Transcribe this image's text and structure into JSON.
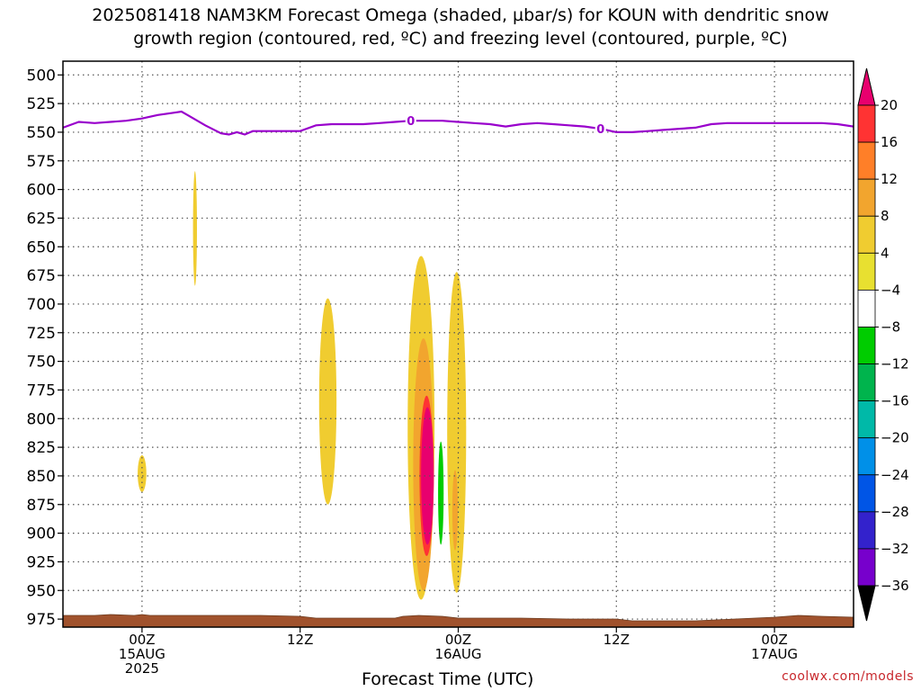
{
  "title": {
    "line1": "2025081418 NAM3KM Forecast Omega (shaded, µbar/s) for KOUN with dendritic snow",
    "line2": "growth region (contoured, red, ºC) and freezing level (contoured, purple, ºC)"
  },
  "credit": "coolwx.com/models",
  "colors": {
    "freezing_level": "#9900cc",
    "terrain": "#a0522d",
    "grid": "#555555"
  },
  "chart_data": {
    "type": "heatmap",
    "xlabel": "Forecast Time (UTC)",
    "ylabel": "",
    "y_axis": {
      "reversed": true,
      "range": [
        488,
        982
      ],
      "ticks": [
        "500",
        "525",
        "550",
        "575",
        "600",
        "625",
        "650",
        "675",
        "700",
        "725",
        "750",
        "775",
        "800",
        "825",
        "850",
        "875",
        "900",
        "925",
        "950",
        "975"
      ]
    },
    "x_axis": {
      "range_hours": [
        -10,
        90
      ],
      "ticks": [
        {
          "hour": 0,
          "lines": [
            "00Z",
            "15AUG",
            "2025"
          ]
        },
        {
          "hour": 20,
          "lines": [
            "12Z"
          ]
        },
        {
          "hour": 40,
          "lines": [
            "00Z",
            "16AUG"
          ]
        },
        {
          "hour": 60,
          "lines": [
            "12Z"
          ]
        },
        {
          "hour": 80,
          "lines": [
            "00Z",
            "17AUG"
          ]
        }
      ],
      "grid": true
    },
    "colorbar": {
      "labels": [
        "20",
        "16",
        "12",
        "8",
        "4",
        "-4",
        "-8",
        "-12",
        "-16",
        "-20",
        "-24",
        "-28",
        "-32",
        "-36"
      ],
      "colors": [
        "#e8005a",
        "#ff3333",
        "#ff7f28",
        "#f2a52e",
        "#f0cc30",
        "#e8e030",
        "#ffffff",
        "#00cc00",
        "#00b44d",
        "#00b9a8",
        "#0090e8",
        "#0055e6",
        "#3322cc",
        "#7700cc",
        "#9900cc",
        "#a3a3a3"
      ],
      "over_color": "#e8006e",
      "under_color": "#000000"
    },
    "freezing_level": {
      "label": "0",
      "color": "#9900cc",
      "x_hours": [
        -10,
        -8,
        -6,
        -4,
        -2,
        0,
        2,
        4,
        5,
        6,
        8,
        10,
        11,
        12,
        13,
        14,
        16,
        18,
        20,
        22,
        24,
        26,
        28,
        30,
        32,
        34,
        36,
        38,
        40,
        42,
        44,
        46,
        48,
        50,
        52,
        54,
        56,
        58,
        60,
        62,
        64,
        66,
        68,
        70,
        72,
        74,
        76,
        78,
        80,
        82,
        84,
        86,
        88,
        90
      ],
      "pressure": [
        546,
        541,
        542,
        541,
        540,
        538,
        535,
        533,
        532,
        536,
        544,
        551,
        552,
        550,
        552,
        549,
        549,
        549,
        549,
        544,
        543,
        543,
        543,
        542,
        541,
        540,
        540,
        540,
        541,
        542,
        543,
        545,
        543,
        542,
        543,
        544,
        545,
        547,
        550,
        550,
        549,
        548,
        547,
        546,
        543,
        542,
        542,
        542,
        542,
        542,
        542,
        542,
        543,
        545
      ]
    },
    "shaded_regions": [
      {
        "name": "yellow-streak-a",
        "value": 6,
        "cx_hours": 6.7,
        "cy": 634,
        "rx_hours": 0.25,
        "ry": 50
      },
      {
        "name": "yellow-blob-00z",
        "value": 6,
        "cx_hours": 0,
        "cy": 848,
        "rx_hours": 0.55,
        "ry": 16
      },
      {
        "name": "green-strip-12z",
        "value": -6,
        "cx_hours": 21.5,
        "cy": 805,
        "rx_hours": 0.3,
        "ry": 65
      },
      {
        "name": "yellow-column-13z",
        "value": 6,
        "cx_hours": 23.5,
        "cy": 785,
        "rx_hours": 1.1,
        "ry": 90
      },
      {
        "name": "green-blob-18z",
        "value": -6,
        "cx_hours": 31,
        "cy": 820,
        "rx_hours": 0.6,
        "ry": 22
      },
      {
        "name": "green-patch-17z",
        "value": -6,
        "cx_hours": 30.8,
        "cy": 897,
        "rx_hours": 0.7,
        "ry": 8
      },
      {
        "name": "yellow-main-band",
        "value": 6,
        "cx_hours": 35.3,
        "cy": 808,
        "rx_hours": 1.7,
        "ry": 150
      },
      {
        "name": "orange-main-band",
        "value": 10,
        "cx_hours": 35.6,
        "cy": 840,
        "rx_hours": 1.3,
        "ry": 110
      },
      {
        "name": "red-core-outer",
        "value": 16,
        "cx_hours": 36,
        "cy": 850,
        "rx_hours": 0.9,
        "ry": 70
      },
      {
        "name": "magenta-core",
        "value": 20,
        "cx_hours": 36.1,
        "cy": 850,
        "rx_hours": 0.8,
        "ry": 60
      },
      {
        "name": "green-vertical",
        "value": -8,
        "cx_hours": 37.8,
        "cy": 870,
        "rx_hours": 0.6,
        "ry": 90
      },
      {
        "name": "teal-vertical",
        "value": -12,
        "cx_hours": 37.8,
        "cy": 865,
        "rx_hours": 0.35,
        "ry": 45
      },
      {
        "name": "yellow-right-band",
        "value": 6,
        "cx_hours": 39.8,
        "cy": 812,
        "rx_hours": 1.2,
        "ry": 140
      },
      {
        "name": "orange-right-core",
        "value": 10,
        "cx_hours": 39.6,
        "cy": 880,
        "rx_hours": 0.35,
        "ry": 35
      },
      {
        "name": "green-blob-09z",
        "value": -6,
        "cx_hours": 55.2,
        "cy": 850,
        "rx_hours": 0.6,
        "ry": 15
      }
    ]
  }
}
